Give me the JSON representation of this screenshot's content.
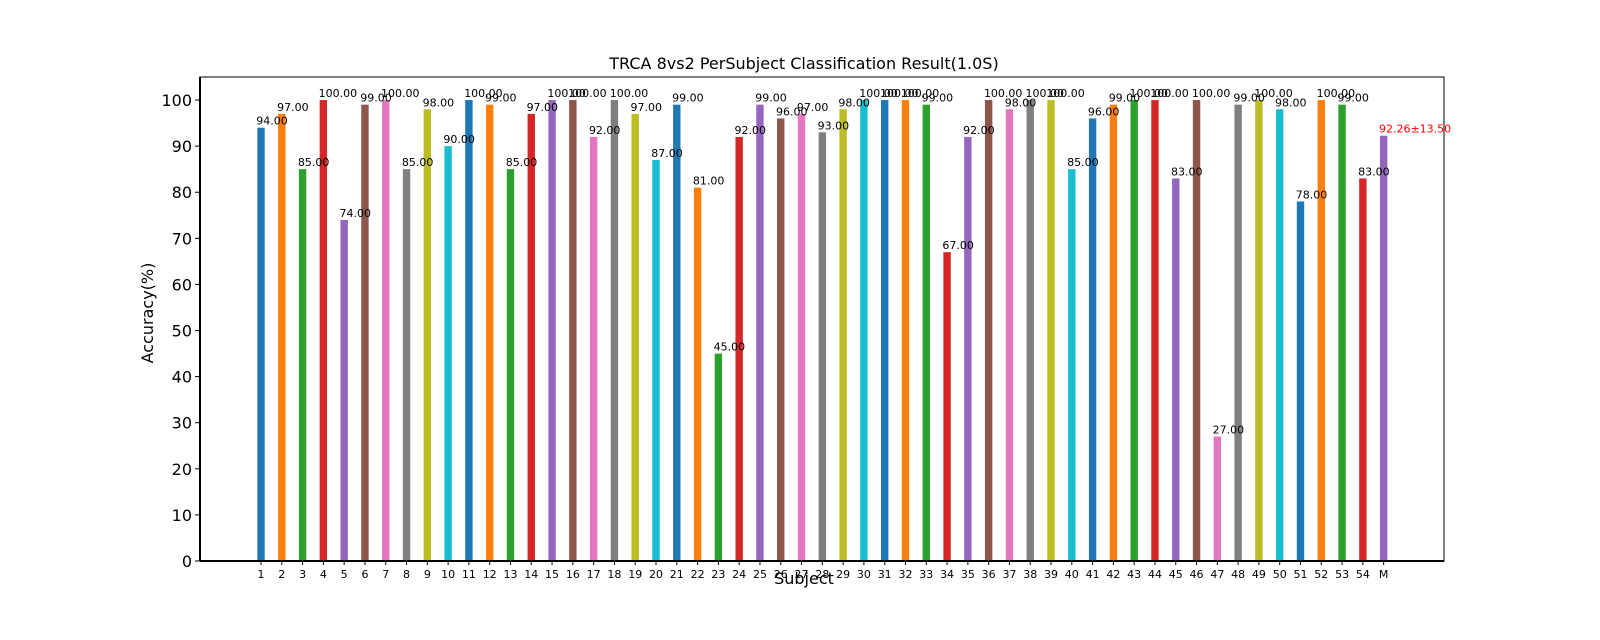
{
  "chart_data": {
    "type": "bar",
    "title": "TRCA 8vs2 PerSubject Classification Result(1.0S)",
    "xlabel": "Subject",
    "ylabel": "Accuracy(%)",
    "ylim": [
      0,
      105
    ],
    "yticks": [
      0,
      10,
      20,
      30,
      40,
      50,
      60,
      70,
      80,
      90,
      100
    ],
    "grid": false,
    "categories": [
      "1",
      "2",
      "3",
      "4",
      "5",
      "6",
      "7",
      "8",
      "9",
      "10",
      "11",
      "12",
      "13",
      "14",
      "15",
      "16",
      "17",
      "18",
      "19",
      "20",
      "21",
      "22",
      "23",
      "24",
      "25",
      "26",
      "27",
      "28",
      "29",
      "30",
      "31",
      "32",
      "33",
      "34",
      "35",
      "36",
      "37",
      "38",
      "39",
      "40",
      "41",
      "42",
      "43",
      "44",
      "45",
      "46",
      "47",
      "48",
      "49",
      "50",
      "51",
      "52",
      "53",
      "54",
      "M"
    ],
    "values": [
      94,
      97,
      85,
      100,
      74,
      99,
      100,
      85,
      98,
      90,
      100,
      99,
      85,
      97,
      100,
      100,
      92,
      100,
      97,
      87,
      99,
      81,
      45,
      92,
      99,
      96,
      97,
      93,
      98,
      100,
      100,
      100,
      99,
      67,
      92,
      100,
      98,
      100,
      100,
      85,
      96,
      99,
      100,
      100,
      83,
      100,
      27,
      99,
      100,
      98,
      78,
      100,
      99,
      83,
      92.26
    ],
    "labels": [
      "94.00",
      "97.00",
      "85.00",
      "100.00",
      "74.00",
      "99.00",
      "100.00",
      "85.00",
      "98.00",
      "90.00",
      "100.00",
      "99.00",
      "85.00",
      "97.00",
      "100.00",
      "100.00",
      "92.00",
      "100.00",
      "97.00",
      "87.00",
      "99.00",
      "81.00",
      "45.00",
      "92.00",
      "99.00",
      "96.00",
      "97.00",
      "93.00",
      "98.00",
      "100.00",
      "100.00",
      "100.00",
      "99.00",
      "67.00",
      "92.00",
      "100.00",
      "98.00",
      "100.00",
      "100.00",
      "85.00",
      "96.00",
      "99.00",
      "100.00",
      "100.00",
      "83.00",
      "100.00",
      "27.00",
      "99.00",
      "100.00",
      "98.00",
      "78.00",
      "100.00",
      "99.00",
      "83.00",
      "92.26±13.50"
    ],
    "colors": [
      "#1f77b4",
      "#ff7f0e",
      "#2ca02c",
      "#d62728",
      "#9467bd",
      "#8c564b",
      "#e377c2",
      "#7f7f7f",
      "#bcbd22",
      "#17becf"
    ],
    "mean_label_color": "#ff0000"
  }
}
